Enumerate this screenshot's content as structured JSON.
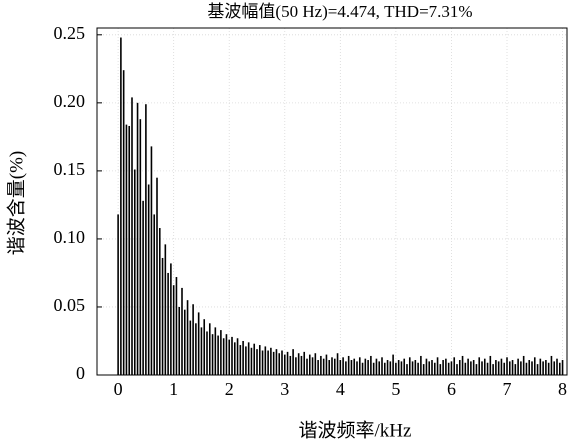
{
  "chart_data": {
    "type": "bar",
    "title": "基波幅值(50 Hz)=4.474, THD=7.31%",
    "x_label": "谐波频率/kHz",
    "y_label": "谐波含量(%)",
    "color": "#000000",
    "grid": true,
    "x": [
      0,
      0.05,
      0.1,
      0.15,
      0.2,
      0.25,
      0.3,
      0.35,
      0.4,
      0.45,
      0.5,
      0.55,
      0.6,
      0.65,
      0.7,
      0.75,
      0.8,
      0.85,
      0.9,
      0.95,
      1,
      1.05,
      1.1,
      1.15,
      1.2,
      1.25,
      1.3,
      1.35,
      1.4,
      1.45,
      1.5,
      1.55,
      1.6,
      1.65,
      1.7,
      1.75,
      1.8,
      1.85,
      1.9,
      1.95,
      2,
      2.05,
      2.1,
      2.15,
      2.2,
      2.25,
      2.3,
      2.35,
      2.4,
      2.45,
      2.5,
      2.55,
      2.6,
      2.65,
      2.7,
      2.75,
      2.8,
      2.85,
      2.9,
      2.95,
      3,
      3.05,
      3.1,
      3.15,
      3.2,
      3.25,
      3.3,
      3.35,
      3.4,
      3.45,
      3.5,
      3.55,
      3.6,
      3.65,
      3.7,
      3.75,
      3.8,
      3.85,
      3.9,
      3.95,
      4,
      4.05,
      4.1,
      4.15,
      4.2,
      4.25,
      4.3,
      4.35,
      4.4,
      4.45,
      4.5,
      4.55,
      4.6,
      4.65,
      4.7,
      4.75,
      4.8,
      4.85,
      4.9,
      4.95,
      5,
      5.05,
      5.1,
      5.15,
      5.2,
      5.25,
      5.3,
      5.35,
      5.4,
      5.45,
      5.5,
      5.55,
      5.6,
      5.65,
      5.7,
      5.75,
      5.8,
      5.85,
      5.9,
      5.95,
      6,
      6.05,
      6.1,
      6.15,
      6.2,
      6.25,
      6.3,
      6.35,
      6.4,
      6.45,
      6.5,
      6.55,
      6.6,
      6.65,
      6.7,
      6.75,
      6.8,
      6.85,
      6.9,
      6.95,
      7,
      7.05,
      7.1,
      7.15,
      7.2,
      7.25,
      7.3,
      7.35,
      7.4,
      7.45,
      7.5,
      7.55,
      7.6,
      7.65,
      7.7,
      7.75,
      7.8,
      7.85,
      7.9,
      7.95,
      8
    ],
    "values": [
      0.118,
      0.248,
      0.224,
      0.184,
      0.183,
      0.204,
      0.151,
      0.2,
      0.188,
      0.128,
      0.199,
      0.14,
      0.168,
      0.118,
      0.145,
      0.108,
      0.086,
      0.096,
      0.075,
      0.082,
      0.066,
      0.072,
      0.05,
      0.064,
      0.048,
      0.055,
      0.04,
      0.052,
      0.038,
      0.046,
      0.035,
      0.041,
      0.032,
      0.038,
      0.03,
      0.035,
      0.029,
      0.033,
      0.027,
      0.03,
      0.026,
      0.028,
      0.024,
      0.027,
      0.022,
      0.025,
      0.021,
      0.024,
      0.02,
      0.023,
      0.019,
      0.022,
      0.018,
      0.021,
      0.018,
      0.02,
      0.017,
      0.019,
      0.016,
      0.018,
      0.015,
      0.017,
      0.014,
      0.019,
      0.013,
      0.016,
      0.014,
      0.017,
      0.012,
      0.015,
      0.013,
      0.016,
      0.011,
      0.014,
      0.012,
      0.015,
      0.011,
      0.013,
      0.012,
      0.016,
      0.011,
      0.013,
      0.01,
      0.014,
      0.011,
      0.012,
      0.01,
      0.013,
      0.009,
      0.012,
      0.011,
      0.014,
      0.009,
      0.012,
      0.01,
      0.013,
      0.009,
      0.011,
      0.01,
      0.015,
      0.009,
      0.011,
      0.01,
      0.012,
      0.008,
      0.013,
      0.01,
      0.011,
      0.009,
      0.014,
      0.008,
      0.012,
      0.01,
      0.011,
      0.009,
      0.013,
      0.008,
      0.011,
      0.012,
      0.009,
      0.01,
      0.013,
      0.008,
      0.011,
      0.014,
      0.009,
      0.012,
      0.01,
      0.011,
      0.008,
      0.013,
      0.01,
      0.012,
      0.009,
      0.014,
      0.008,
      0.011,
      0.01,
      0.012,
      0.009,
      0.013,
      0.01,
      0.011,
      0.008,
      0.012,
      0.01,
      0.014,
      0.009,
      0.011,
      0.01,
      0.013,
      0.008,
      0.012,
      0.01,
      0.011,
      0.009,
      0.014,
      0.01,
      0.012,
      0.009,
      0.011
    ],
    "xlim": [
      -0.38,
      8.08
    ],
    "xticks": [
      0,
      1,
      2,
      3,
      4,
      5,
      6,
      7,
      8
    ],
    "ylim": [
      0,
      0.255
    ],
    "yticks": [
      0,
      0.05,
      {
        "value": 0.1,
        "label": "0.10"
      },
      0.15,
      {
        "value": 0.2,
        "label": "0.20"
      },
      0.25
    ]
  }
}
